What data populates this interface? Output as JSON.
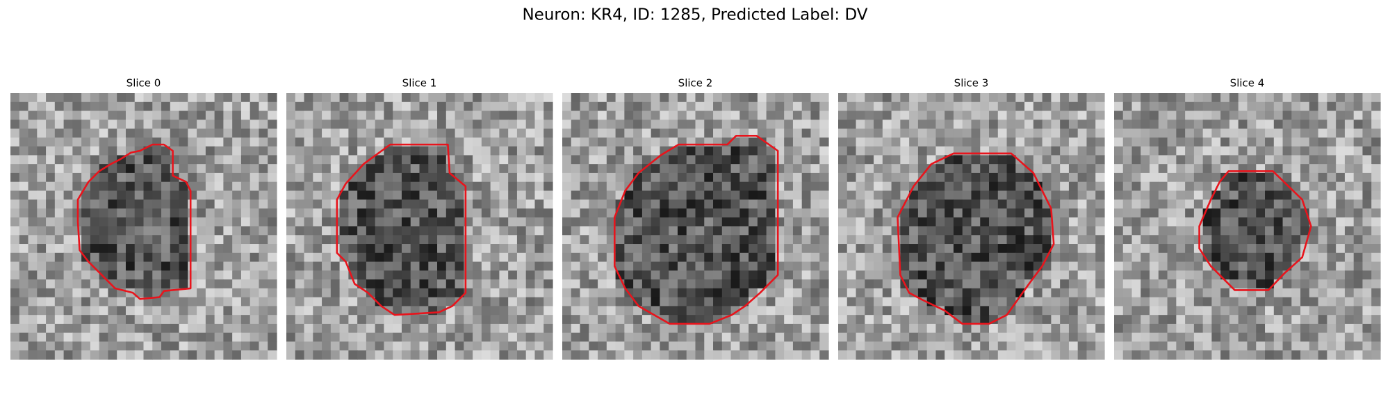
{
  "header": {
    "title": "Neuron: KR4, ID: 1285, Predicted Label: DV"
  },
  "panels": [
    {
      "title": "Slice 0"
    },
    {
      "title": "Slice 1"
    },
    {
      "title": "Slice 2"
    },
    {
      "title": "Slice 3"
    },
    {
      "title": "Slice 4"
    }
  ]
}
